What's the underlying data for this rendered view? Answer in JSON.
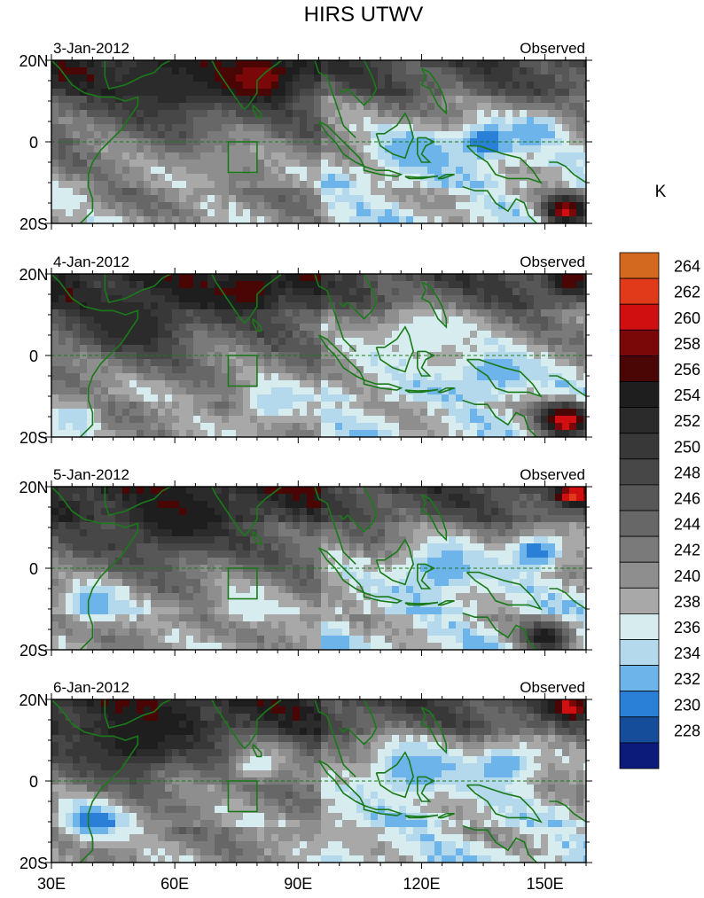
{
  "chart_data": {
    "type": "heatmap",
    "title": "HIRS UTWV",
    "units": "K",
    "x_ticks": [
      "30E",
      "60E",
      "90E",
      "120E",
      "150E"
    ],
    "x_range": [
      30,
      160
    ],
    "y_ticks": [
      "20N",
      "0",
      "20S"
    ],
    "y_range": [
      -20,
      20
    ],
    "colorbar": {
      "levels": [
        264,
        262,
        260,
        258,
        256,
        254,
        252,
        250,
        248,
        246,
        244,
        242,
        240,
        238,
        236,
        234,
        232,
        230,
        228
      ],
      "colors": [
        "#d2691e",
        "#e03a1a",
        "#d01010",
        "#7a0808",
        "#4a0505",
        "#1e1e1e",
        "#2b2b2b",
        "#383838",
        "#474747",
        "#575757",
        "#676767",
        "#7a7a7a",
        "#8e8e8e",
        "#a8a8a8",
        "#d6ecee",
        "#b5d9ec",
        "#6cb4ea",
        "#2a7fd6",
        "#164d9a",
        "#0c1a7a"
      ]
    },
    "panels": [
      {
        "date": "3-Jan-2012",
        "label": "Observed",
        "seed": 3,
        "features": [
          {
            "lon": 80,
            "lat": 16,
            "value": 260,
            "r": 9
          },
          {
            "lon": 60,
            "lat": 14,
            "value": 254,
            "r": 12
          },
          {
            "lon": 118,
            "lat": -2,
            "value": 232,
            "r": 10
          },
          {
            "lon": 136,
            "lat": 0,
            "value": 230,
            "r": 8
          },
          {
            "lon": 148,
            "lat": 3,
            "value": 232,
            "r": 7
          },
          {
            "lon": 155,
            "lat": -17,
            "value": 262,
            "r": 6
          },
          {
            "lon": 33,
            "lat": -14,
            "value": 236,
            "r": 6
          },
          {
            "lon": 70,
            "lat": -5,
            "value": 240,
            "r": 8
          }
        ]
      },
      {
        "date": "4-Jan-2012",
        "label": "Observed",
        "seed": 4,
        "features": [
          {
            "lon": 78,
            "lat": 16,
            "value": 258,
            "r": 7
          },
          {
            "lon": 50,
            "lat": 8,
            "value": 254,
            "r": 12
          },
          {
            "lon": 120,
            "lat": 5,
            "value": 236,
            "r": 12
          },
          {
            "lon": 138,
            "lat": -4,
            "value": 232,
            "r": 9
          },
          {
            "lon": 84,
            "lat": -12,
            "value": 234,
            "r": 8
          },
          {
            "lon": 155,
            "lat": -16,
            "value": 262,
            "r": 7
          },
          {
            "lon": 156,
            "lat": 18,
            "value": 258,
            "r": 5
          },
          {
            "lon": 36,
            "lat": -15,
            "value": 234,
            "r": 6
          }
        ]
      },
      {
        "date": "5-Jan-2012",
        "label": "Observed",
        "seed": 5,
        "features": [
          {
            "lon": 60,
            "lat": 12,
            "value": 256,
            "r": 12
          },
          {
            "lon": 125,
            "lat": 0,
            "value": 232,
            "r": 11
          },
          {
            "lon": 148,
            "lat": 4,
            "value": 230,
            "r": 7
          },
          {
            "lon": 40,
            "lat": -9,
            "value": 232,
            "r": 8
          },
          {
            "lon": 78,
            "lat": -10,
            "value": 236,
            "r": 8
          },
          {
            "lon": 157,
            "lat": 18,
            "value": 264,
            "r": 4
          },
          {
            "lon": 150,
            "lat": -17,
            "value": 256,
            "r": 6
          }
        ]
      },
      {
        "date": "6-Jan-2012",
        "label": "Observed",
        "seed": 6,
        "features": [
          {
            "lon": 50,
            "lat": 10,
            "value": 256,
            "r": 12
          },
          {
            "lon": 118,
            "lat": 3,
            "value": 232,
            "r": 12
          },
          {
            "lon": 140,
            "lat": 4,
            "value": 232,
            "r": 9
          },
          {
            "lon": 40,
            "lat": -10,
            "value": 230,
            "r": 8
          },
          {
            "lon": 80,
            "lat": 4,
            "value": 236,
            "r": 7
          },
          {
            "lon": 156,
            "lat": 18,
            "value": 262,
            "r": 4
          },
          {
            "lon": 100,
            "lat": -14,
            "value": 238,
            "r": 8
          }
        ]
      }
    ]
  }
}
